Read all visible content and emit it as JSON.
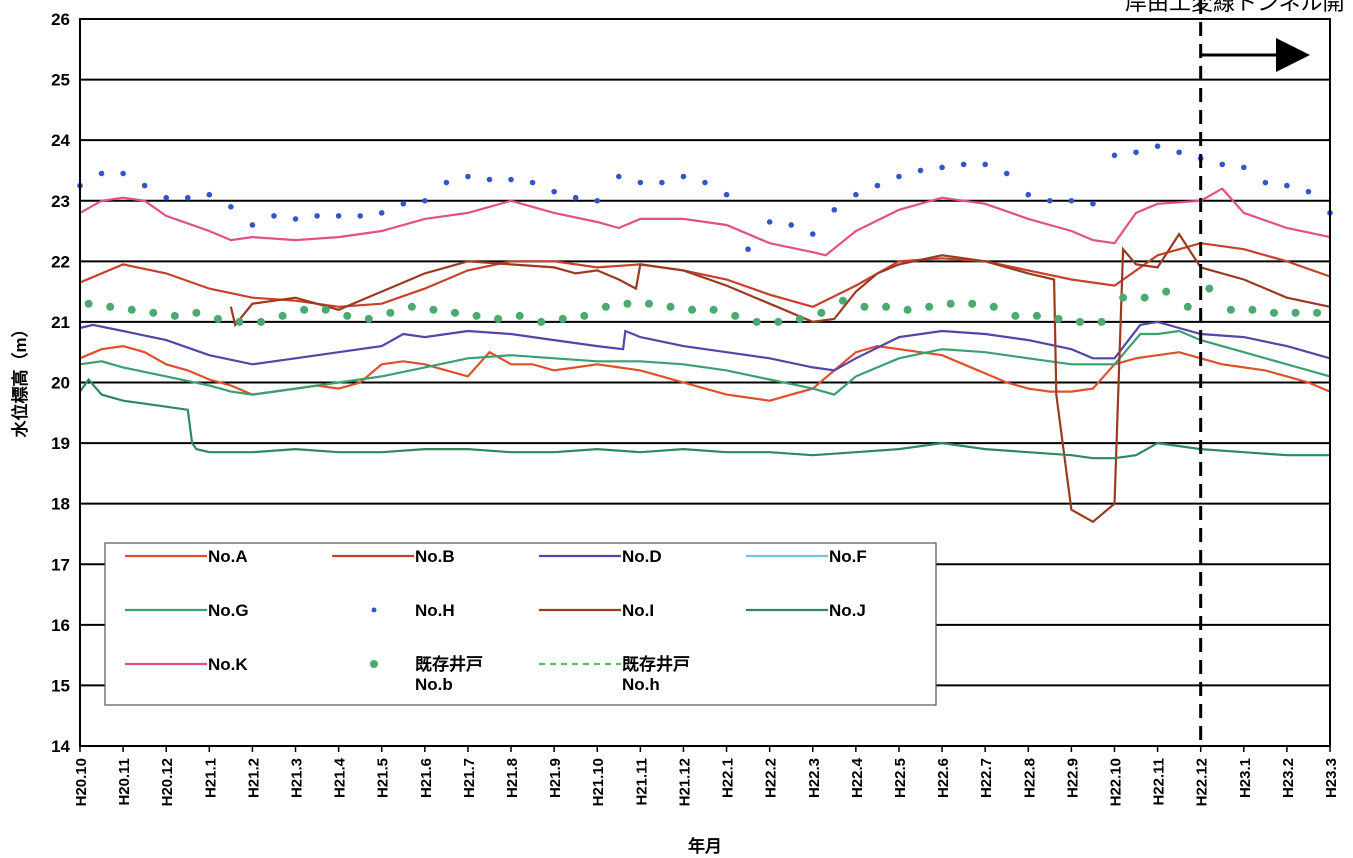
{
  "chart_data": {
    "type": "line",
    "title": "",
    "xlabel": "年月",
    "ylabel": "水位標高（m）",
    "ylim": [
      14,
      26
    ],
    "y_ticks": [
      "14",
      "15",
      "16",
      "17",
      "18",
      "19",
      "20",
      "21",
      "22",
      "23",
      "24",
      "25",
      "26"
    ],
    "x_ticks": [
      "H20.10",
      "H20.11",
      "H20.12",
      "H21.1",
      "H21.2",
      "H21.3",
      "H21.4",
      "H21.5",
      "H21.6",
      "H21.7",
      "H21.8",
      "H21.9",
      "H21.10",
      "H21.11",
      "H21.12",
      "H22.1",
      "H22.2",
      "H22.3",
      "H22.4",
      "H22.5",
      "H22.6",
      "H22.7",
      "H22.8",
      "H22.9",
      "H22.10",
      "H22.11",
      "H22.12",
      "H23.1",
      "H23.2",
      "H23.3"
    ],
    "grid": "horizontal",
    "legend_position": "bottom-left",
    "annotation": {
      "text": "岸由工変線トンネル開",
      "marker_x": "H22.12",
      "arrow": "right"
    },
    "series": [
      {
        "name": "No.A",
        "style": "line",
        "color": "#e0502a",
        "x": [
          0,
          0.5,
          1,
          1.5,
          2,
          2.5,
          3,
          3.5,
          4,
          4.5,
          5,
          5.5,
          6,
          6.5,
          7,
          7.5,
          8,
          8.5,
          9,
          9.5,
          10,
          10.5,
          11,
          11.5,
          12,
          12.5,
          13,
          13.5,
          14,
          14.5,
          15,
          15.5,
          16,
          16.5,
          17,
          17.5,
          18,
          18.5,
          19,
          19.5,
          20,
          20.5,
          21,
          21.5,
          22,
          22.5,
          23,
          23.5,
          24,
          24.5,
          25,
          25.5,
          26,
          26.5,
          27,
          27.5,
          28,
          28.5,
          29
        ],
        "y": [
          20.4,
          20.55,
          20.6,
          20.5,
          20.3,
          20.2,
          20.05,
          19.95,
          19.8,
          19.85,
          19.9,
          19.95,
          19.9,
          20.0,
          20.3,
          20.35,
          20.3,
          20.2,
          20.1,
          20.5,
          20.3,
          20.3,
          20.2,
          20.25,
          20.3,
          20.25,
          20.2,
          20.1,
          20.0,
          19.9,
          19.8,
          19.75,
          19.7,
          19.8,
          19.9,
          20.2,
          20.5,
          20.6,
          20.55,
          20.5,
          20.45,
          20.3,
          20.15,
          20.0,
          19.9,
          19.85,
          19.85,
          19.9,
          20.3,
          20.4,
          20.45,
          20.5,
          20.4,
          20.3,
          20.25,
          20.2,
          20.1,
          20.0,
          19.85
        ]
      },
      {
        "name": "No.B",
        "style": "line",
        "color": "#c8402a",
        "x": [
          0,
          1,
          2,
          3,
          4,
          5,
          6,
          7,
          8,
          9,
          10,
          11,
          12,
          13,
          14,
          15,
          16,
          17,
          18,
          19,
          20,
          21,
          22,
          23,
          24,
          25,
          26,
          27,
          28,
          29
        ],
        "y": [
          21.65,
          21.95,
          21.8,
          21.55,
          21.4,
          21.35,
          21.25,
          21.3,
          21.55,
          21.85,
          22.0,
          22.0,
          21.9,
          21.95,
          21.85,
          21.7,
          21.45,
          21.25,
          21.6,
          22.0,
          22.05,
          22.0,
          21.85,
          21.7,
          21.6,
          22.1,
          22.3,
          22.2,
          22.0,
          21.75
        ]
      },
      {
        "name": "No.D",
        "style": "line",
        "color": "#5544aa",
        "x": [
          0,
          0.3,
          1,
          2,
          3,
          4,
          5,
          6,
          7,
          7.5,
          8,
          9,
          10,
          11,
          12,
          12.6,
          12.65,
          13,
          14,
          15,
          16,
          17,
          17.5,
          18,
          19,
          20,
          21,
          22,
          23,
          23.5,
          24,
          24.6,
          25,
          25.5,
          26,
          27,
          28,
          29
        ],
        "y": [
          20.9,
          20.95,
          20.85,
          20.7,
          20.45,
          20.3,
          20.4,
          20.5,
          20.6,
          20.8,
          20.75,
          20.85,
          20.8,
          20.7,
          20.6,
          20.55,
          20.85,
          20.75,
          20.6,
          20.5,
          20.4,
          20.25,
          20.2,
          20.4,
          20.75,
          20.85,
          20.8,
          20.7,
          20.55,
          20.4,
          20.4,
          20.95,
          21.0,
          20.9,
          20.8,
          20.75,
          20.6,
          20.4
        ]
      },
      {
        "name": "No.F",
        "style": "line",
        "color": "#6ec6e6",
        "x": [],
        "y": []
      },
      {
        "name": "No.G",
        "style": "line",
        "color": "#3aa070",
        "x": [
          0,
          0.5,
          1,
          2,
          3,
          3.5,
          4,
          5,
          6,
          7,
          8,
          9,
          10,
          11,
          12,
          13,
          14,
          15,
          16,
          17,
          17.5,
          18,
          19,
          20,
          21,
          22,
          23,
          24,
          24.6,
          25,
          25.5,
          26,
          27,
          28,
          29
        ],
        "y": [
          20.3,
          20.35,
          20.25,
          20.1,
          19.95,
          19.85,
          19.8,
          19.9,
          20.0,
          20.1,
          20.25,
          20.4,
          20.45,
          20.4,
          20.35,
          20.35,
          20.3,
          20.2,
          20.05,
          19.9,
          19.8,
          20.1,
          20.4,
          20.55,
          20.5,
          20.4,
          20.3,
          20.3,
          20.8,
          20.8,
          20.85,
          20.7,
          20.5,
          20.3,
          20.1
        ]
      },
      {
        "name": "No.H",
        "style": "dots",
        "color": "#3355cc",
        "x": [
          0,
          0.5,
          1,
          1.5,
          2,
          2.5,
          3,
          3.5,
          4,
          4.5,
          5,
          5.5,
          6,
          6.5,
          7,
          7.5,
          8,
          8.5,
          9,
          9.5,
          10,
          10.5,
          11,
          11.5,
          12,
          12.5,
          13,
          13.5,
          14,
          14.5,
          15,
          15.5,
          16,
          16.5,
          17,
          17.5,
          18,
          18.5,
          19,
          19.5,
          20,
          20.5,
          21,
          21.5,
          22,
          22.5,
          23,
          23.5,
          24,
          24.5,
          25,
          25.5,
          26,
          26.5,
          27,
          27.5,
          28,
          28.5,
          29
        ],
        "y": [
          23.25,
          23.45,
          23.45,
          23.25,
          23.05,
          23.05,
          23.1,
          22.9,
          22.6,
          22.75,
          22.7,
          22.75,
          22.75,
          22.75,
          22.8,
          22.95,
          23.0,
          23.3,
          23.4,
          23.35,
          23.35,
          23.3,
          23.15,
          23.05,
          23.0,
          23.4,
          23.3,
          23.3,
          23.4,
          23.3,
          23.1,
          22.2,
          22.65,
          22.6,
          22.45,
          22.85,
          23.1,
          23.25,
          23.4,
          23.5,
          23.55,
          23.6,
          23.6,
          23.45,
          23.1,
          23.0,
          23.0,
          22.95,
          23.75,
          23.8,
          23.9,
          23.8,
          23.7,
          23.6,
          23.55,
          23.3,
          23.25,
          23.15,
          22.8
        ]
      },
      {
        "name": "No.I",
        "style": "line",
        "color": "#9a3a20",
        "x": [
          3.5,
          3.6,
          4,
          5,
          6,
          7,
          8,
          9,
          10,
          11,
          11.5,
          12,
          12.5,
          12.9,
          13,
          14,
          15,
          16,
          17,
          17.5,
          18,
          18.5,
          19,
          20,
          21,
          22,
          22.6,
          22.65,
          23,
          23.5,
          24,
          24.2,
          24.5,
          25,
          25.5,
          26,
          27,
          28,
          29
        ],
        "y": [
          21.25,
          20.95,
          21.3,
          21.4,
          21.2,
          21.5,
          21.8,
          22.0,
          21.95,
          21.9,
          21.8,
          21.85,
          21.7,
          21.55,
          21.95,
          21.85,
          21.6,
          21.3,
          21.0,
          21.05,
          21.5,
          21.8,
          21.95,
          22.1,
          22.0,
          21.8,
          21.7,
          19.8,
          17.9,
          17.7,
          18.0,
          22.2,
          21.95,
          21.9,
          22.45,
          21.9,
          21.7,
          21.4,
          21.25
        ]
      },
      {
        "name": "No.J",
        "style": "line",
        "color": "#2e8a5e",
        "x": [
          0,
          0.2,
          0.5,
          1,
          1.5,
          2,
          2.5,
          2.6,
          2.7,
          3,
          4,
          5,
          6,
          7,
          8,
          9,
          10,
          11,
          12,
          13,
          14,
          15,
          16,
          17,
          18,
          19,
          20,
          21,
          22,
          23,
          23.5,
          24,
          24.5,
          25,
          26,
          27,
          28,
          29
        ],
        "y": [
          19.85,
          20.05,
          19.8,
          19.7,
          19.65,
          19.6,
          19.55,
          19.0,
          18.9,
          18.85,
          18.85,
          18.9,
          18.85,
          18.85,
          18.9,
          18.9,
          18.85,
          18.85,
          18.9,
          18.85,
          18.9,
          18.85,
          18.85,
          18.8,
          18.85,
          18.9,
          19.0,
          18.9,
          18.85,
          18.8,
          18.75,
          18.75,
          18.8,
          19.0,
          18.9,
          18.85,
          18.8,
          18.8
        ]
      },
      {
        "name": "No.K",
        "style": "line",
        "color": "#e0508a",
        "x": [
          0,
          0.5,
          1,
          1.5,
          2,
          3,
          3.5,
          4,
          5,
          6,
          7,
          8,
          9,
          10,
          11,
          12,
          12.5,
          13,
          14,
          15,
          16,
          17,
          17.3,
          18,
          19,
          20,
          21,
          22,
          23,
          23.5,
          24,
          24.5,
          25,
          26,
          26.5,
          27,
          28,
          29
        ],
        "y": [
          22.8,
          23.0,
          23.05,
          23.0,
          22.75,
          22.5,
          22.35,
          22.4,
          22.35,
          22.4,
          22.5,
          22.7,
          22.8,
          23.0,
          22.8,
          22.65,
          22.55,
          22.7,
          22.7,
          22.6,
          22.3,
          22.15,
          22.1,
          22.5,
          22.85,
          23.05,
          22.95,
          22.7,
          22.5,
          22.35,
          22.3,
          22.8,
          22.95,
          23.0,
          23.2,
          22.8,
          22.55,
          22.4
        ]
      },
      {
        "name": "既存井戸\nNo.b",
        "style": "dots",
        "color": "#4aaa72",
        "x": [
          0.2,
          0.7,
          1.2,
          1.7,
          2.2,
          2.7,
          3.2,
          3.7,
          4.2,
          4.7,
          5.2,
          5.7,
          6.2,
          6.7,
          7.2,
          7.7,
          8.2,
          8.7,
          9.2,
          9.7,
          10.2,
          10.7,
          11.2,
          11.7,
          12.2,
          12.7,
          13.2,
          13.7,
          14.2,
          14.7,
          15.2,
          15.7,
          16.2,
          16.7,
          17.2,
          17.7,
          18.2,
          18.7,
          19.2,
          19.7,
          20.2,
          20.7,
          21.2,
          21.7,
          22.2,
          22.7,
          23.2,
          23.7,
          24.2,
          24.7,
          25.2,
          25.7,
          26.2,
          26.7,
          27.2,
          27.7,
          28.2,
          28.7
        ],
        "y": [
          21.3,
          21.25,
          21.2,
          21.15,
          21.1,
          21.15,
          21.05,
          21.0,
          21.0,
          21.1,
          21.2,
          21.2,
          21.1,
          21.05,
          21.15,
          21.25,
          21.2,
          21.15,
          21.1,
          21.05,
          21.1,
          21.0,
          21.05,
          21.1,
          21.25,
          21.3,
          21.3,
          21.25,
          21.2,
          21.2,
          21.1,
          21.0,
          21.0,
          21.05,
          21.15,
          21.35,
          21.25,
          21.25,
          21.2,
          21.25,
          21.3,
          21.3,
          21.25,
          21.1,
          21.1,
          21.05,
          21.0,
          21.0,
          21.4,
          21.4,
          21.5,
          21.25,
          21.55,
          21.2,
          21.2,
          21.15,
          21.15,
          21.15
        ]
      },
      {
        "name": "既存井戸\nNo.h",
        "style": "dashed",
        "color": "#58c070",
        "x": [],
        "y": []
      }
    ]
  }
}
